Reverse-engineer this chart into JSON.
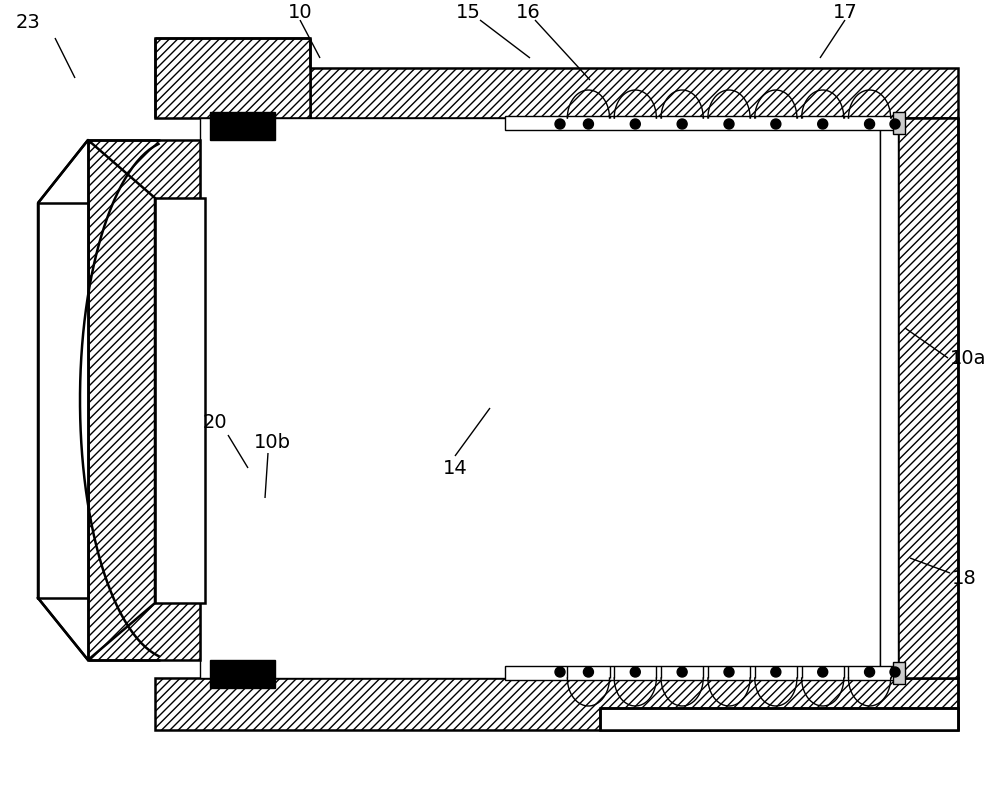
{
  "bg_color": "#ffffff",
  "line_color": "#000000",
  "figsize": [
    10.0,
    7.98
  ],
  "dpi": 100,
  "lw_main": 1.8,
  "lw_thin": 1.0,
  "fs_label": 14
}
